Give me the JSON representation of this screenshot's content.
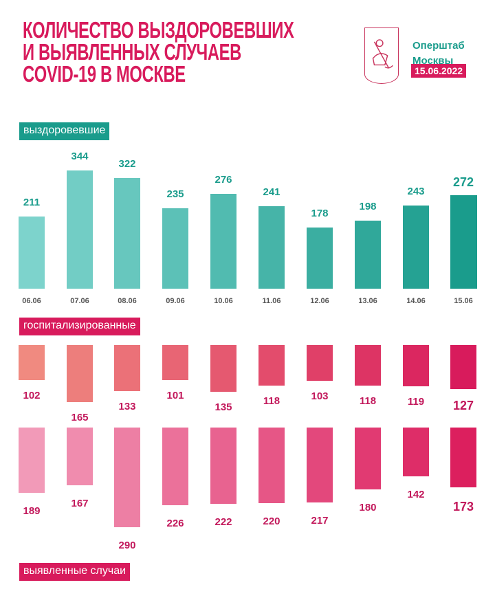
{
  "header": {
    "title_lines": [
      "КОЛИЧЕСТВО ВЫЗДОРОВЕВШИХ",
      "И ВЫЯВЛЕННЫХ СЛУЧАЕВ",
      "COVID-19 В МОСКВЕ"
    ],
    "org_lines": [
      "Оперштаб",
      "Москвы"
    ],
    "date": "15.06.2022",
    "logo": "moscow-coat-of-arms"
  },
  "colors": {
    "title": "#d81b5c",
    "teal": "#1a9c8c",
    "pink": "#d81b5c"
  },
  "chart_data": [
    {
      "type": "bar",
      "title": "выздоровевшие",
      "categories": [
        "06.06",
        "07.06",
        "08.06",
        "09.06",
        "10.06",
        "11.06",
        "12.06",
        "13.06",
        "14.06",
        "15.06"
      ],
      "values": [
        211,
        344,
        322,
        235,
        276,
        241,
        178,
        198,
        243,
        272
      ]
    },
    {
      "type": "bar",
      "title": "госпитализированные",
      "orientation": "downward",
      "categories": [
        "06.06",
        "07.06",
        "08.06",
        "09.06",
        "10.06",
        "11.06",
        "12.06",
        "13.06",
        "14.06",
        "15.06"
      ],
      "values": [
        102,
        165,
        133,
        101,
        135,
        118,
        103,
        118,
        119,
        127
      ]
    },
    {
      "type": "bar",
      "title": "выявленные случаи",
      "orientation": "downward",
      "categories": [
        "06.06",
        "07.06",
        "08.06",
        "09.06",
        "10.06",
        "11.06",
        "12.06",
        "13.06",
        "14.06",
        "15.06"
      ],
      "values": [
        189,
        167,
        290,
        226,
        222,
        220,
        217,
        180,
        142,
        173
      ]
    }
  ]
}
